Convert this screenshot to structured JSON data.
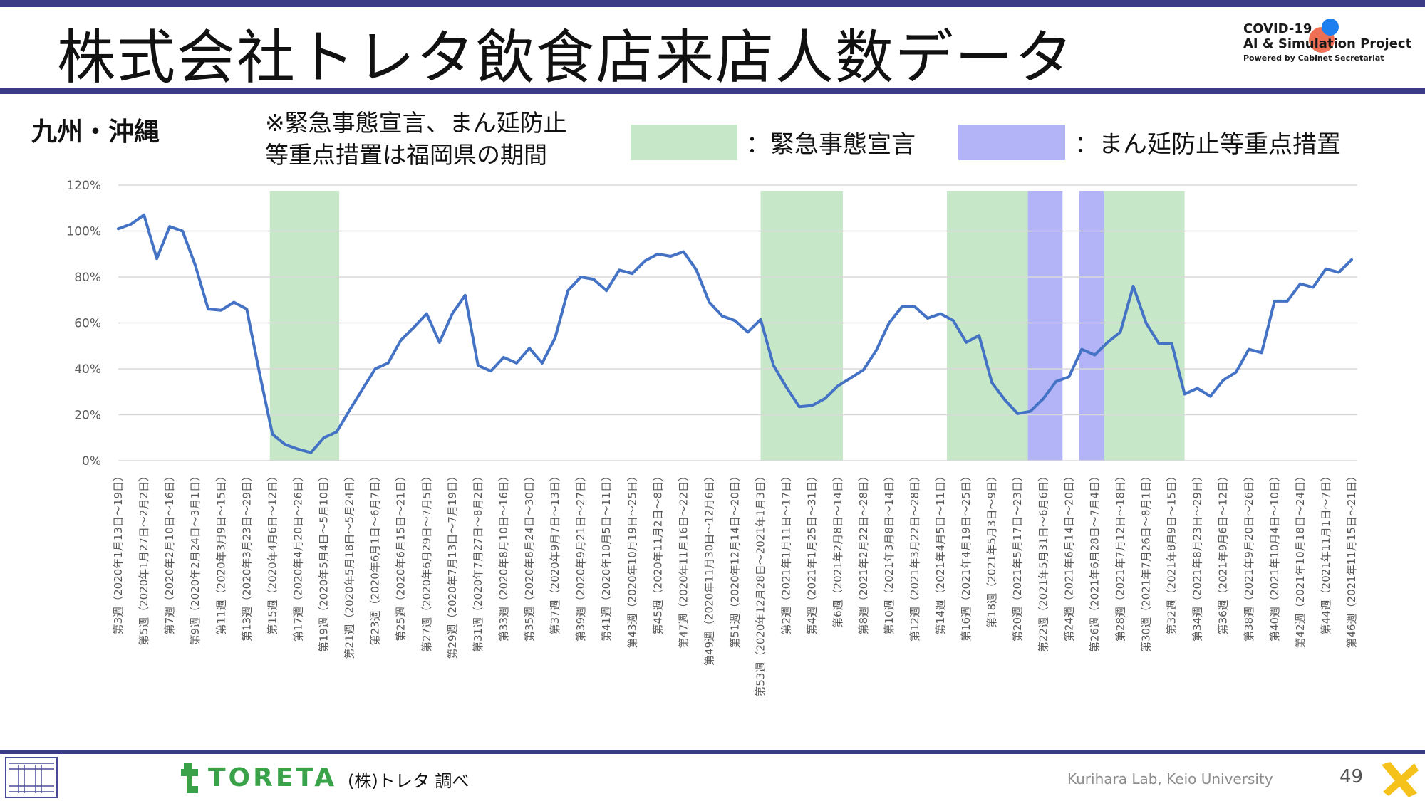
{
  "header": {
    "title": "株式会社トレタ飲食店来店人数データ",
    "logo_line1": "COVID-19",
    "logo_line2": "AI & Simulation Project",
    "logo_line3": "Powered by Cabinet Secretariat"
  },
  "legend": {
    "region": "九州・沖縄",
    "note_line1": "※緊急事態宣言、まん延防止",
    "note_line2": "等重点措置は福岡県の期間",
    "state_of_emergency": "：緊急事態宣言",
    "priority_measures": "：まん延防止等重点措置"
  },
  "footer": {
    "source": "(株)トレタ 調べ",
    "toreta_logo": "TORETA",
    "lab": "Kurihara Lab, Keio University",
    "page": "49"
  },
  "colors": {
    "line": "#4472c4",
    "state_of_emergency": "#c6e7c8",
    "priority_measures": "#b3b3f7",
    "accent": "#3b3b86"
  },
  "chart_data": {
    "type": "line",
    "y_unit": "%",
    "ylim": [
      0,
      120
    ],
    "y_ticks": [
      "0%",
      "20%",
      "40%",
      "60%",
      "80%",
      "100%",
      "120%"
    ],
    "grid": true,
    "x_labels": [
      "第3週（2020年1月13日～19日）",
      "第5週（2020年1月27日～2月2日）",
      "第7週（2020年2月10日～16日）",
      "第9週（2020年2月24日～3月1日）",
      "第11週（2020年3月9日～15日）",
      "第13週（2020年3月23日～29日）",
      "第15週（2020年4月6日～12日）",
      "第17週（2020年4月20日～26日）",
      "第19週（2020年5月4日～5月10日）",
      "第21週（2020年5月18日～5月24日）",
      "第23週（2020年6月1日～6月7日）",
      "第25週（2020年6月15日～21日）",
      "第27週（2020年6月29日～7月5日）",
      "第29週（2020年7月13日～7月19日）",
      "第31週（2020年7月27日～8月2日）",
      "第33週（2020年8月10日～16日）",
      "第35週（2020年8月24日～30日）",
      "第37週（2020年9月7日～13日）",
      "第39週（2020年9月21日～27日）",
      "第41週（2020年10月5日～11日）",
      "第43週（2020年10月19日～25日）",
      "第45週（2020年11月2日～8日）",
      "第47週（2020年11月16日～22日）",
      "第49週（2020年11月30日～12月6日）",
      "第51週（2020年12月14日～20日）",
      "第53週（2020年12月28日～2021年1月3日）",
      "第2週（2021年1月11日～17日）",
      "第4週（2021年1月25日～31日）",
      "第6週（2021年2月8日～14日）",
      "第8週（2021年2月22日～28日）",
      "第10週（2021年3月8日～14日）",
      "第12週（2021年3月22日～28日）",
      "第14週（2021年4月5日～11日）",
      "第16週（2021年4月19日～25日）",
      "第18週（2021年5月3日～9日）",
      "第20週（2021年5月17日～23日）",
      "第22週（2021年5月31日～6月6日）",
      "第24週（2021年6月14日～20日）",
      "第26週（2021年6月28日～7月4日）",
      "第28週（2021年7月12日～18日）",
      "第30週（2021年7月26日～8月1日）",
      "第32週（2021年8月9日～15日）",
      "第34週（2021年8月23日～29日）",
      "第36週（2021年9月6日～12日）",
      "第38週（2021年9月20日～26日）",
      "第40週（2021年10月4日～10日）",
      "第42週（2021年10月18日～24日）",
      "第44週（2021年11月1日～7日）",
      "第46週（2021年11月15日～21日）"
    ],
    "series": [
      {
        "values": [
          101,
          103,
          107,
          88,
          102,
          100,
          85,
          66,
          65.5,
          69,
          66,
          38,
          11.5,
          7,
          5,
          3.5,
          10,
          12.5,
          22,
          31,
          40,
          42.5,
          52.5,
          58,
          64,
          51.5,
          64,
          72,
          41.5,
          39,
          45,
          42.5,
          49,
          42.5,
          53.5,
          74,
          80,
          79,
          74,
          83,
          81.5,
          87,
          90,
          89,
          91,
          83,
          69,
          63,
          61,
          56,
          61.5,
          41.5,
          32,
          23.5,
          24,
          27,
          32.5,
          36,
          39.5,
          48,
          60,
          67,
          67,
          62,
          64,
          61,
          51.5,
          54.5,
          34,
          26.5,
          20.5,
          21.5,
          27,
          34.5,
          36.5,
          48.5,
          46,
          51.5,
          56,
          76,
          60,
          51,
          51,
          29,
          31.5,
          28,
          35,
          38.5,
          48.5,
          47,
          69.5,
          69.5,
          77,
          75.5,
          83.5,
          82,
          87.5
        ]
      }
    ],
    "shaded_periods": [
      {
        "type": "state_of_emergency",
        "from": 11.8,
        "to": 17.2
      },
      {
        "type": "state_of_emergency",
        "from": 50.0,
        "to": 56.4
      },
      {
        "type": "state_of_emergency",
        "from": 64.5,
        "to": 70.8
      },
      {
        "type": "priority_measures",
        "from": 70.8,
        "to": 73.5
      },
      {
        "type": "priority_measures",
        "from": 74.8,
        "to": 76.7
      },
      {
        "type": "state_of_emergency",
        "from": 76.7,
        "to": 83.0
      }
    ]
  }
}
